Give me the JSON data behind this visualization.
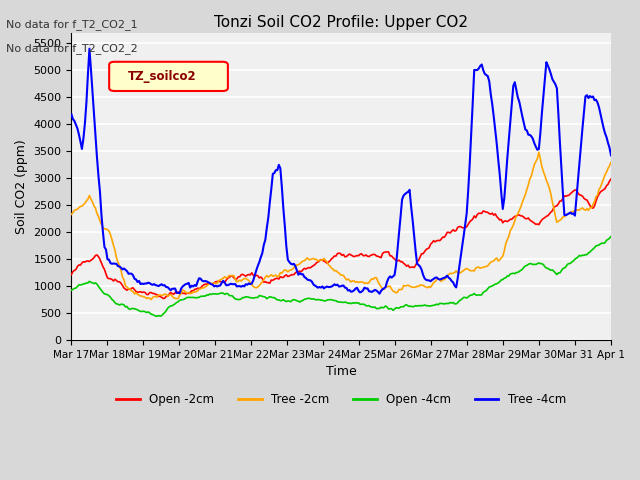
{
  "title": "Tonzi Soil CO2 Profile: Upper CO2",
  "xlabel": "Time",
  "ylabel": "Soil CO2 (ppm)",
  "ylim": [
    0,
    5700
  ],
  "yticks": [
    0,
    500,
    1000,
    1500,
    2000,
    2500,
    3000,
    3500,
    4000,
    4500,
    5000,
    5500
  ],
  "annotations": [
    "No data for f_T2_CO2_1",
    "No data for f_T2_CO2_2"
  ],
  "legend_label": "TZ_soilco2",
  "legend_entries": [
    "Open -2cm",
    "Tree -2cm",
    "Open -4cm",
    "Tree -4cm"
  ],
  "legend_colors": [
    "#ff0000",
    "#ffa500",
    "#00cc00",
    "#0000ff"
  ],
  "bg_color": "#d8d8d8",
  "plot_bg_color": "#f0f0f0",
  "grid_color": "#ffffff",
  "x_tick_labels": [
    "Mar 17",
    "Mar 18",
    "Mar 19",
    "Mar 20",
    "Mar 21",
    "Mar 22",
    "Mar 23",
    "Mar 24",
    "Mar 25",
    "Mar 26",
    "Mar 27",
    "Mar 28",
    "Mar 29",
    "Mar 30",
    "Mar 31",
    "Apr 1"
  ],
  "num_points": 360,
  "red_kp_t": [
    0,
    0.3,
    0.7,
    1.0,
    1.5,
    2.0,
    2.5,
    3.0,
    3.5,
    4.0,
    4.5,
    5.0,
    5.5,
    6.0,
    6.5,
    7.0,
    7.5,
    8.0,
    8.5,
    9.0,
    9.5,
    10.0,
    10.5,
    11.0,
    11.5,
    12.0,
    12.5,
    13.0,
    13.5,
    14.0,
    14.5,
    15.0
  ],
  "red_kp_v": [
    1200,
    1400,
    1650,
    1200,
    1000,
    900,
    800,
    850,
    950,
    1100,
    1150,
    1200,
    1100,
    1200,
    1300,
    1450,
    1550,
    1600,
    1550,
    1500,
    1350,
    1800,
    1950,
    2200,
    2400,
    2200,
    2300,
    2100,
    2500,
    2800,
    2500,
    3000
  ],
  "orange_kp_t": [
    0,
    0.3,
    0.5,
    0.8,
    1.0,
    1.5,
    2.0,
    2.5,
    3.0,
    3.5,
    4.0,
    4.5,
    5.0,
    5.5,
    6.0,
    6.5,
    7.0,
    7.5,
    8.0,
    8.5,
    9.0,
    9.5,
    10.0,
    10.5,
    11.0,
    11.5,
    12.0,
    12.5,
    13.0,
    13.5,
    14.0,
    14.5,
    15.0
  ],
  "orange_kp_v": [
    2300,
    2500,
    2600,
    2200,
    2100,
    1000,
    800,
    750,
    850,
    950,
    1100,
    1200,
    1000,
    1150,
    1300,
    1500,
    1550,
    1200,
    1050,
    1100,
    900,
    1000,
    1000,
    1200,
    1250,
    1400,
    1600,
    2500,
    3500,
    2200,
    2400,
    2500,
    3300
  ],
  "green_kp_t": [
    0,
    0.5,
    1.0,
    1.5,
    2.0,
    2.5,
    3.0,
    3.5,
    4.0,
    4.5,
    5.0,
    5.5,
    6.0,
    6.5,
    7.0,
    7.5,
    8.0,
    8.5,
    9.0,
    9.5,
    10.0,
    10.5,
    11.0,
    11.5,
    12.0,
    12.5,
    13.0,
    13.5,
    14.0,
    14.5,
    15.0
  ],
  "green_kp_v": [
    950,
    1100,
    850,
    600,
    500,
    450,
    750,
    800,
    850,
    800,
    780,
    800,
    700,
    750,
    700,
    700,
    650,
    600,
    600,
    650,
    600,
    700,
    800,
    900,
    1100,
    1300,
    1450,
    1200,
    1500,
    1700,
    1900
  ],
  "blue_kp_t": [
    0,
    0.1,
    0.2,
    0.3,
    0.4,
    0.5,
    0.7,
    0.9,
    1.0,
    1.2,
    1.4,
    1.6,
    1.8,
    2.0,
    2.2,
    2.5,
    3.0,
    3.5,
    4.0,
    4.5,
    5.0,
    5.2,
    5.4,
    5.6,
    5.8,
    6.0,
    6.5,
    7.0,
    7.5,
    8.0,
    8.5,
    9.0,
    9.2,
    9.4,
    9.6,
    9.8,
    10.0,
    10.3,
    10.7,
    11.0,
    11.2,
    11.4,
    11.6,
    11.8,
    12.0,
    12.3,
    12.6,
    13.0,
    13.2,
    13.5,
    13.7,
    14.0,
    14.3,
    14.6,
    15.0
  ],
  "blue_kp_v": [
    4200,
    4000,
    3800,
    3500,
    4200,
    5400,
    3500,
    1800,
    1500,
    1400,
    1300,
    1200,
    1100,
    1050,
    1000,
    1000,
    950,
    1050,
    1050,
    1050,
    1000,
    1400,
    1900,
    3050,
    3250,
    1500,
    1100,
    1000,
    1000,
    900,
    900,
    1200,
    2650,
    2800,
    1400,
    1200,
    1100,
    1200,
    1000,
    2350,
    5050,
    5100,
    4900,
    3800,
    2400,
    4850,
    3900,
    3500,
    5200,
    4600,
    2300,
    2300,
    4600,
    4450,
    3400
  ]
}
